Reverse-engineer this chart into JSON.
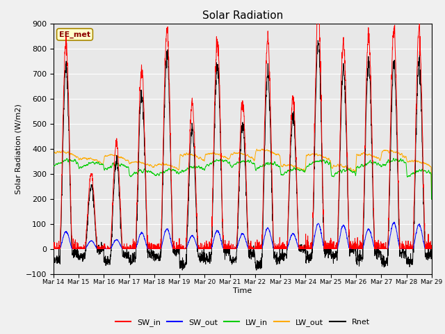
{
  "title": "Solar Radiation",
  "ylabel": "Solar Radiation (W/m2)",
  "xlabel": "Time",
  "ylim": [
    -100,
    900
  ],
  "annotation": "EE_met",
  "x_tick_labels": [
    "Mar 14",
    "Mar 15",
    "Mar 16",
    "Mar 17",
    "Mar 18",
    "Mar 19",
    "Mar 20",
    "Mar 21",
    "Mar 22",
    "Mar 23",
    "Mar 24",
    "Mar 25",
    "Mar 26",
    "Mar 27",
    "Mar 28",
    "Mar 29"
  ],
  "legend_entries": [
    "SW_in",
    "SW_out",
    "LW_in",
    "LW_out",
    "Rnet"
  ],
  "legend_colors": [
    "#ff0000",
    "#0000ff",
    "#00cc00",
    "#ffaa00",
    "#000000"
  ],
  "bg_color": "#e8e8e8",
  "fig_bg_color": "#f0f0f0",
  "n_days": 15,
  "sw_in_peaks": [
    820,
    300,
    420,
    720,
    880,
    580,
    830,
    590,
    830,
    600,
    960,
    830,
    850,
    880,
    870
  ],
  "lw_in_base": 320,
  "lw_out_base": 360,
  "night_rnet": -60,
  "seed": 42
}
